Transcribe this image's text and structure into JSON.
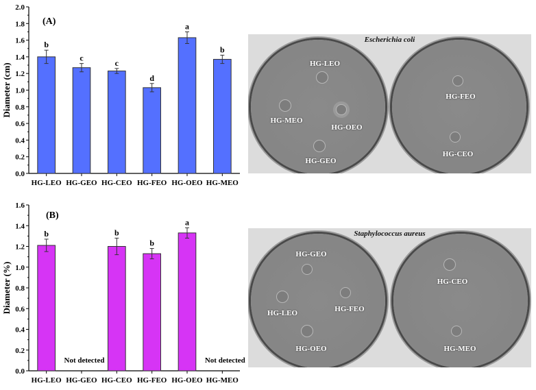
{
  "chart_data": [
    {
      "type": "bar",
      "panel": "(A)",
      "title": "",
      "xlabel": "",
      "ylabel": "Diameter (cm)",
      "ylim": [
        0,
        2.0
      ],
      "yticks": [
        "0.0",
        "0.2",
        "0.4",
        "0.6",
        "0.8",
        "1.0",
        "1.2",
        "1.4",
        "1.6",
        "1.8",
        "2.0"
      ],
      "categories": [
        "HG-LEO",
        "HG-GEO",
        "HG-CEO",
        "HG-FEO",
        "HG-OEO",
        "HG-MEO"
      ],
      "values": [
        1.4,
        1.27,
        1.23,
        1.03,
        1.63,
        1.37
      ],
      "errors": [
        0.08,
        0.05,
        0.03,
        0.05,
        0.07,
        0.05
      ],
      "significance": [
        "b",
        "c",
        "c",
        "d",
        "a",
        "b"
      ],
      "bar_color": "#5470ff",
      "grid": false
    },
    {
      "type": "bar",
      "panel": "(B)",
      "title": "",
      "xlabel": "",
      "ylabel": "Diameter (%)",
      "ylim": [
        0,
        1.6
      ],
      "yticks": [
        "0.0",
        "0.2",
        "0.4",
        "0.6",
        "0.8",
        "1.0",
        "1.2",
        "1.4",
        "1.6"
      ],
      "categories": [
        "HG-LEO",
        "HG-GEO",
        "HG-CEO",
        "HG-FEO",
        "HG-OEO",
        "HG-MEO"
      ],
      "values": [
        1.21,
        0,
        1.2,
        1.13,
        1.33,
        0
      ],
      "errors": [
        0.06,
        0,
        0.08,
        0.05,
        0.05,
        0
      ],
      "significance": [
        "b",
        "",
        "b",
        "b",
        "a",
        ""
      ],
      "annotations": [
        "",
        "Not detected",
        "",
        "",
        "",
        "Not detected"
      ],
      "bar_color": "#d634f5",
      "grid": false
    }
  ],
  "photos": {
    "ecoli": {
      "title": "Escherichia coli",
      "left_plate_labels": [
        "HG-LEO",
        "HG-MEO",
        "HG-OEO",
        "HG-GEO"
      ],
      "right_plate_labels": [
        "HG-FEO",
        "HG-CEO"
      ]
    },
    "saureus": {
      "title": "Staphylococcus aureus",
      "left_plate_labels": [
        "HG-GEO",
        "HG-LEO",
        "HG-FEO",
        "HG-OEO"
      ],
      "right_plate_labels": [
        "HG-CEO",
        "HG-MEO"
      ]
    }
  }
}
